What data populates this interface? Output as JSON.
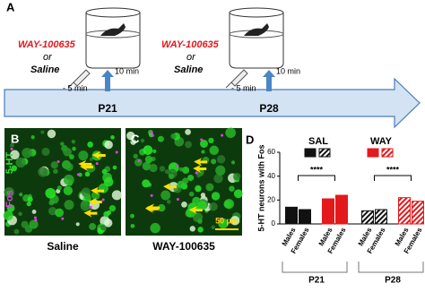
{
  "panel_a": {
    "label": "A",
    "timepoints": [
      "P21",
      "P28"
    ],
    "injections": [
      {
        "drug": "WAY-100635",
        "or": "or",
        "saline": "Saline",
        "time": "- 5 min",
        "delay": "10 min"
      },
      {
        "drug": "WAY-100635",
        "or": "or",
        "saline": "Saline",
        "time": "- 5 min",
        "delay": "10 min"
      }
    ]
  },
  "panel_b": {
    "label": "B",
    "caption": "Saline",
    "stain_fos": "Fos",
    "stain_5ht": "5-HT"
  },
  "panel_c": {
    "label": "C",
    "caption": "WAY-100635",
    "scale": "50 µm"
  },
  "panel_d": {
    "label": "D"
  },
  "chart_data": {
    "type": "bar",
    "y_label": "5-HT neurons with Fos",
    "categories": [
      "Males",
      "Females",
      "Males",
      "Females",
      "Males",
      "Females",
      "Males",
      "Females"
    ],
    "groups": [
      {
        "label": "P21",
        "pattern": "solid",
        "significance": "****"
      },
      {
        "label": "P28",
        "pattern": "hatched",
        "significance": "****"
      }
    ],
    "series": [
      {
        "name": "SAL",
        "color": "#111111",
        "values": [
          14,
          12,
          null,
          null,
          11,
          12,
          null,
          null
        ]
      },
      {
        "name": "WAY",
        "color": "#e3191c",
        "values": [
          null,
          null,
          21,
          24,
          null,
          null,
          22,
          19
        ]
      }
    ],
    "ylim": [
      0,
      60
    ],
    "yticks": [
      0,
      20,
      40,
      60
    ]
  }
}
